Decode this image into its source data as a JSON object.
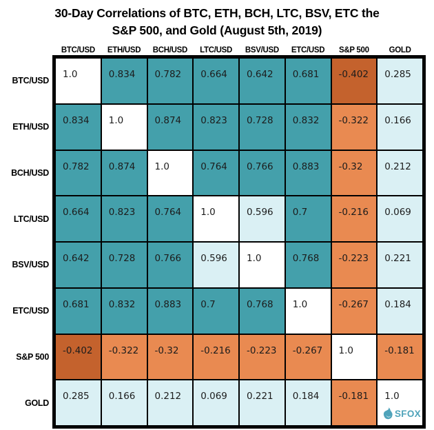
{
  "title": {
    "line1": "30-Day Correlations of BTC, ETH, BCH, LTC, BSV, ETC the",
    "line2": "S&P 500, and Gold (August 5th, 2019)"
  },
  "chart_data": {
    "type": "heatmap",
    "title": "30-Day Correlations of BTC, ETH, BCH, LTC, BSV, ETC the S&P 500, and Gold (August 5th, 2019)",
    "row_labels": [
      "BTC/USD",
      "ETH/USD",
      "BCH/USD",
      "LTC/USD",
      "BSV/USD",
      "ETC/USD",
      "S&P 500",
      "GOLD"
    ],
    "col_labels": [
      "BTC/USD",
      "ETH/USD",
      "BCH/USD",
      "LTC/USD",
      "BSV/USD",
      "ETC/USD",
      "S&P 500",
      "GOLD"
    ],
    "matrix": [
      [
        "1.0",
        "0.834",
        "0.782",
        "0.664",
        "0.642",
        "0.681",
        "-0.402",
        "0.285"
      ],
      [
        "0.834",
        "1.0",
        "0.874",
        "0.823",
        "0.728",
        "0.832",
        "-0.322",
        "0.166"
      ],
      [
        "0.782",
        "0.874",
        "1.0",
        "0.764",
        "0.766",
        "0.883",
        "-0.32",
        "0.212"
      ],
      [
        "0.664",
        "0.823",
        "0.764",
        "1.0",
        "0.596",
        "0.7",
        "-0.216",
        "0.069"
      ],
      [
        "0.642",
        "0.728",
        "0.766",
        "0.596",
        "1.0",
        "0.768",
        "-0.223",
        "0.221"
      ],
      [
        "0.681",
        "0.832",
        "0.883",
        "0.7",
        "0.768",
        "1.0",
        "-0.267",
        "0.184"
      ],
      [
        "-0.402",
        "-0.322",
        "-0.32",
        "-0.216",
        "-0.223",
        "-0.267",
        "1.0",
        "-0.181"
      ],
      [
        "0.285",
        "0.166",
        "0.212",
        "0.069",
        "0.221",
        "0.184",
        "-0.181",
        "1.0"
      ]
    ],
    "value_range": [
      -1,
      1
    ],
    "colors": {
      "strong_positive": "#44a0ab",
      "weak_positive": "#daf0f4",
      "weak_negative": "#e98a51",
      "strong_negative": "#c4622d",
      "diagonal": "#ffffff",
      "grid": "#000000"
    },
    "color_thresholds": {
      "strong_positive_min": 0.6,
      "strong_negative_max": -0.4
    }
  },
  "logo": {
    "text": "SFOX",
    "color": "#4fa3ba",
    "icon": "sfox-fox-drop-icon"
  }
}
